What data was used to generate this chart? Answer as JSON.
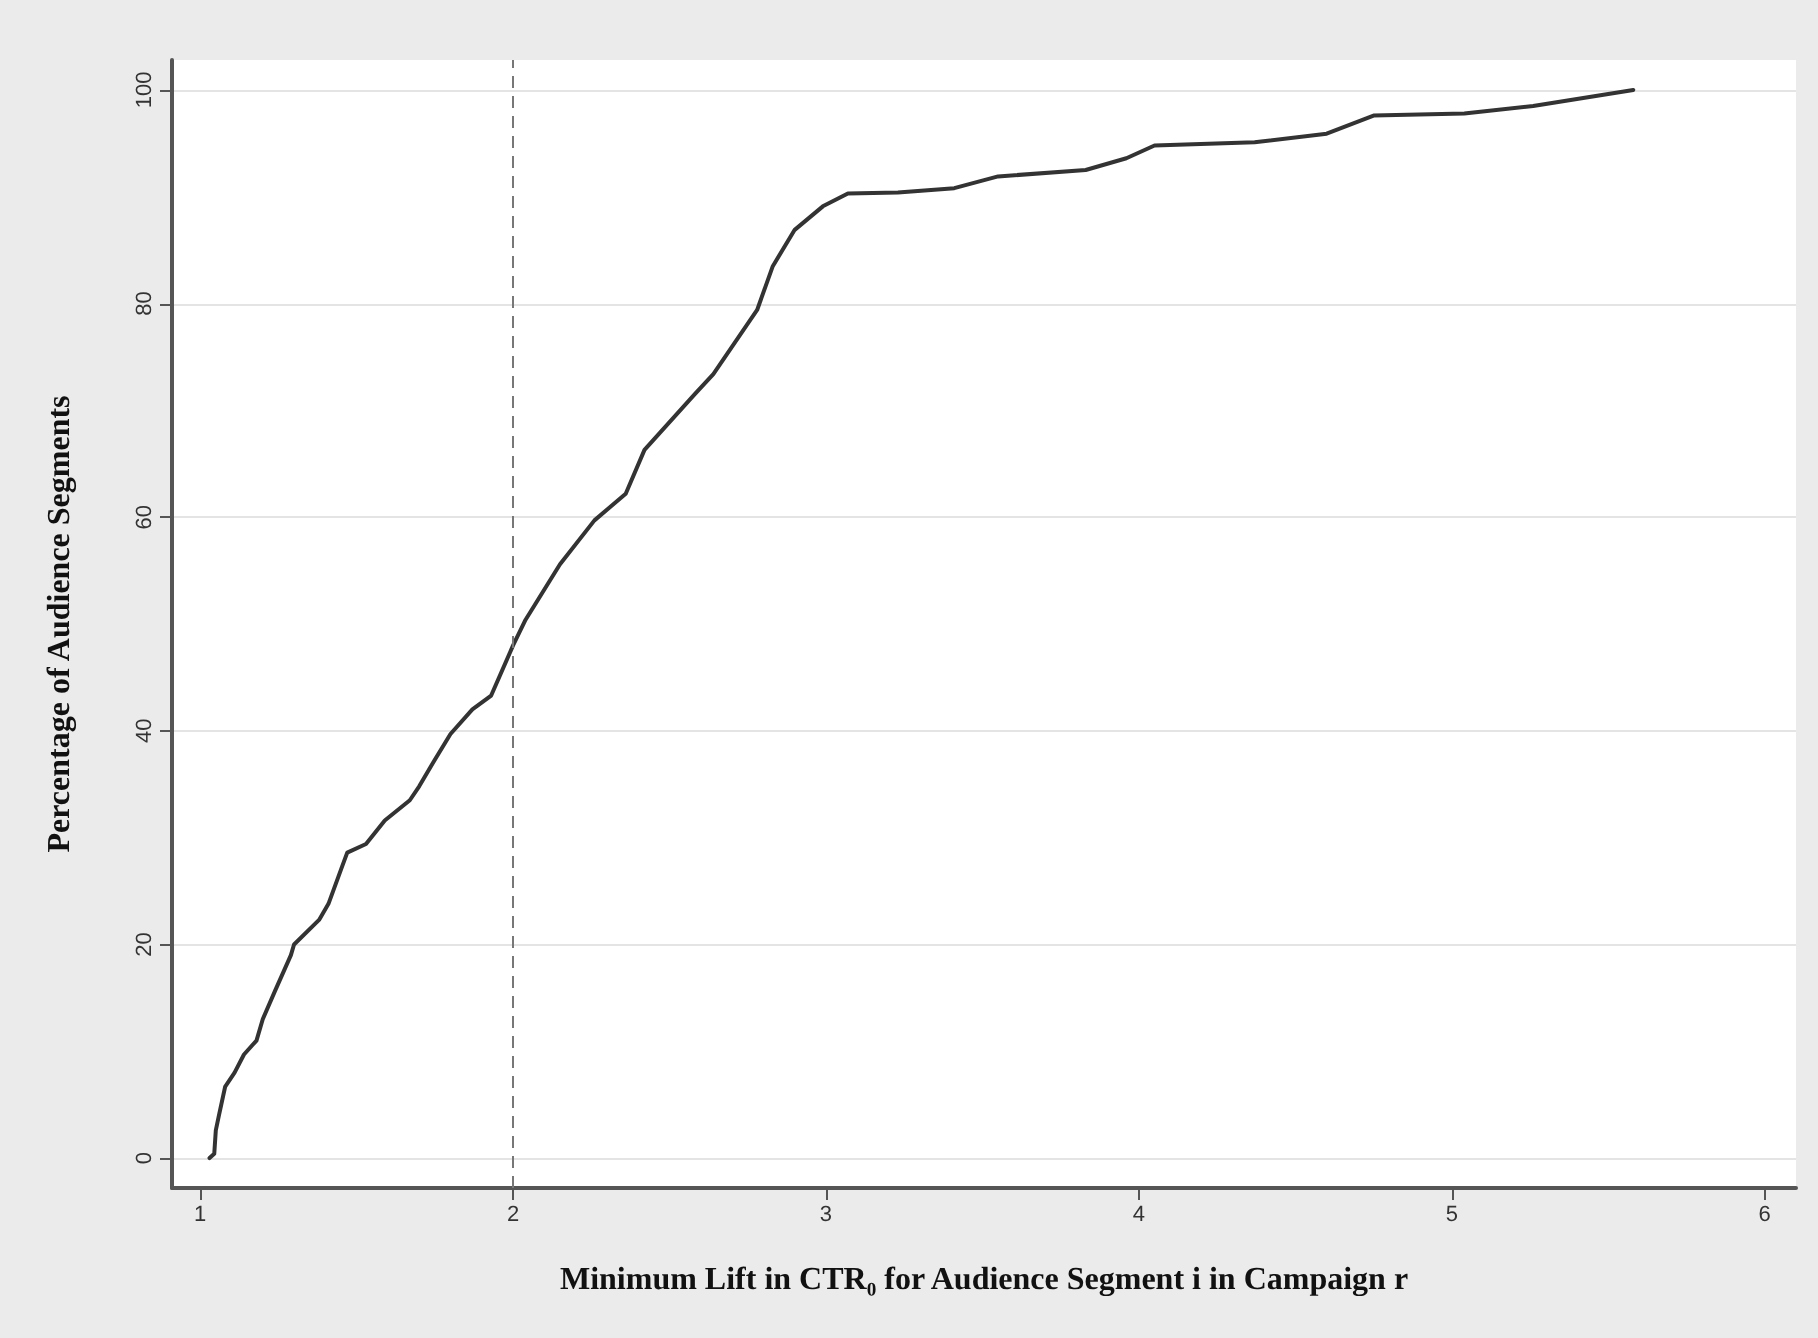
{
  "chart_data": {
    "type": "line",
    "xlabel": "Minimum Lift in CTR₀ for Audience Segment i in Campaign r",
    "ylabel": "Percentage of Audience Segments",
    "series": [
      {
        "color": "#333333",
        "x": [
          1.03,
          1.045,
          1.05,
          1.06,
          1.08,
          1.11,
          1.14,
          1.18,
          1.2,
          1.24,
          1.29,
          1.3,
          1.38,
          1.41,
          1.45,
          1.47,
          1.53,
          1.59,
          1.67,
          1.7,
          1.75,
          1.8,
          1.87,
          1.93,
          2.0,
          2.04,
          2.15,
          2.26,
          2.36,
          2.42,
          2.58,
          2.64,
          2.78,
          2.83,
          2.9,
          2.99,
          3.07,
          3.23,
          3.41,
          3.55,
          3.83,
          3.96,
          4.05,
          4.37,
          4.6,
          4.75,
          5.04,
          5.26,
          5.58
        ],
        "values": [
          0,
          0.4,
          2.6,
          4,
          6.7,
          8,
          9.7,
          11,
          13,
          15.7,
          19,
          20,
          22.3,
          23.8,
          27,
          28.6,
          29.4,
          31.6,
          33.5,
          34.8,
          37.3,
          39.7,
          42,
          43.3,
          48,
          50.4,
          55.6,
          59.7,
          62.2,
          66.3,
          71.5,
          73.4,
          79.4,
          83.5,
          86.9,
          89.1,
          90.3,
          90.4,
          90.8,
          91.9,
          92.5,
          93.6,
          94.8,
          95.1,
          95.9,
          97.6,
          97.8,
          98.5,
          100
        ]
      }
    ],
    "xlim": [
      0.91,
      6.1
    ],
    "xticks": [
      1,
      2,
      3,
      4,
      5,
      6
    ],
    "ylim": [
      -2.8,
      102.8
    ],
    "yticks": [
      0,
      20,
      40,
      60,
      80,
      100
    ],
    "grid": "y",
    "marker": "none",
    "line_style": "solid",
    "ref_lines": [
      {
        "axis": "x",
        "value": 2,
        "line_style": "dashed",
        "color": "#777777"
      }
    ]
  }
}
